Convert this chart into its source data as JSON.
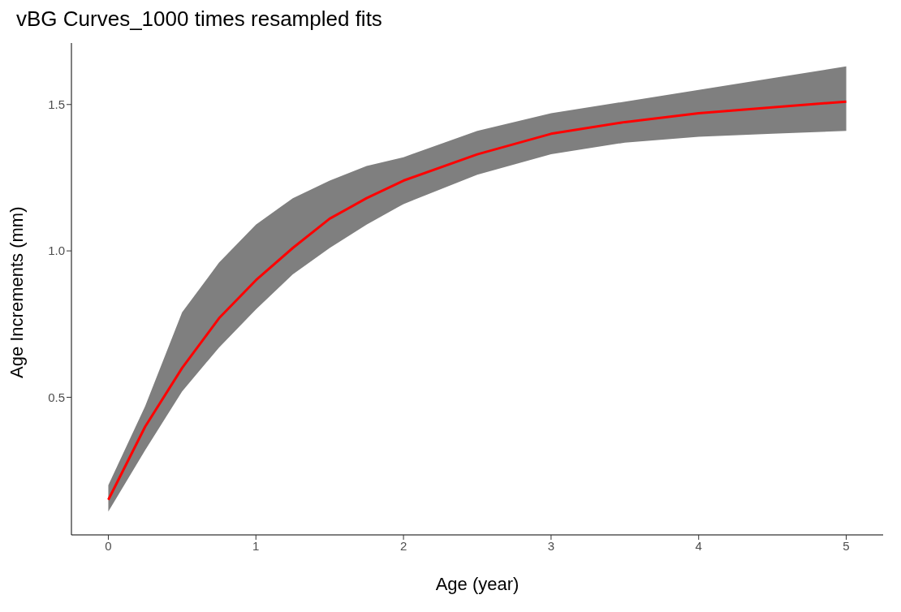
{
  "chart_data": {
    "type": "line",
    "title": "vBG Curves_1000 times resampled fits",
    "xlabel": "Age (year)",
    "ylabel": "Age Increments (mm)",
    "x": [
      0,
      0.25,
      0.5,
      0.75,
      1,
      1.25,
      1.5,
      1.75,
      2,
      2.5,
      3,
      3.5,
      4,
      4.5,
      5
    ],
    "series": [
      {
        "color": "#ff0000",
        "values": [
          0.15,
          0.4,
          0.6,
          0.77,
          0.9,
          1.01,
          1.11,
          1.18,
          1.24,
          1.33,
          1.4,
          1.44,
          1.47,
          1.49,
          1.51
        ],
        "lower": [
          0.11,
          0.32,
          0.52,
          0.67,
          0.8,
          0.92,
          1.01,
          1.09,
          1.16,
          1.26,
          1.33,
          1.37,
          1.39,
          1.4,
          1.41
        ],
        "upper": [
          0.2,
          0.47,
          0.79,
          0.96,
          1.09,
          1.18,
          1.24,
          1.29,
          1.32,
          1.41,
          1.47,
          1.51,
          1.55,
          1.59,
          1.63
        ]
      }
    ],
    "xlim": [
      -0.25,
      5.25
    ],
    "xticks": [
      0,
      1,
      2,
      3,
      4,
      5
    ],
    "ylim": [
      0.03,
      1.71
    ],
    "yticks": [
      0.5,
      {
        "value": 1,
        "label": "1.0"
      },
      1.5
    ],
    "grid": false,
    "legend": false,
    "marker": "none",
    "line_style": "solid"
  }
}
